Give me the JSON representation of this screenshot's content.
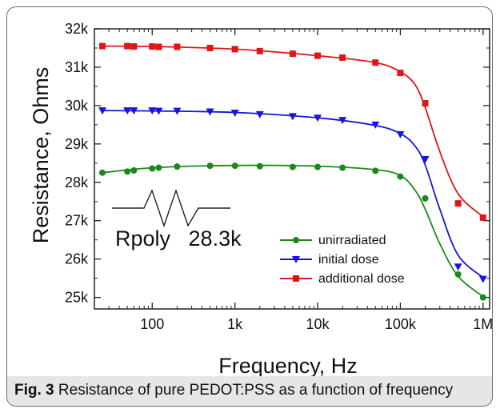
{
  "figure": {
    "caption_label": "Fig. 3",
    "caption_text": "Resistance of pure PEDOT:PSS as a function of frequency"
  },
  "chart_data": {
    "type": "scatter",
    "xlabel": "Frequency, Hz",
    "ylabel": "Resistance, Ohms",
    "xscale": "log",
    "xlim": [
      20,
      1200000
    ],
    "ylim": [
      24700,
      32000
    ],
    "x_ticks": [
      {
        "value": 100,
        "label": "100"
      },
      {
        "value": 1000,
        "label": "1k"
      },
      {
        "value": 10000,
        "label": "10k"
      },
      {
        "value": 100000,
        "label": "100k"
      },
      {
        "value": 1000000,
        "label": "1M"
      }
    ],
    "y_ticks": [
      {
        "value": 25000,
        "label": "25k"
      },
      {
        "value": 26000,
        "label": "26k"
      },
      {
        "value": 27000,
        "label": "27k"
      },
      {
        "value": 28000,
        "label": "28k"
      },
      {
        "value": 29000,
        "label": "29k"
      },
      {
        "value": 30000,
        "label": "30k"
      },
      {
        "value": 31000,
        "label": "31k"
      },
      {
        "value": 32000,
        "label": "32k"
      }
    ],
    "x": [
      25,
      50,
      60,
      100,
      120,
      200,
      500,
      1000,
      2000,
      5000,
      10000,
      20000,
      50000,
      100000,
      200000,
      500000,
      1000000
    ],
    "series": [
      {
        "name": "unirradiated",
        "color": "#1a8a1a",
        "marker": "circle",
        "values": [
          28250,
          28280,
          28310,
          28360,
          28380,
          28410,
          28430,
          28430,
          28420,
          28400,
          28400,
          28380,
          28300,
          28150,
          27580,
          25600,
          25000
        ]
      },
      {
        "name": "initial dose",
        "color": "#1515e0",
        "marker": "triangle-down",
        "values": [
          29870,
          29870,
          29870,
          29870,
          29860,
          29860,
          29840,
          29810,
          29770,
          29720,
          29680,
          29620,
          29500,
          29250,
          28600,
          25800,
          25480
        ]
      },
      {
        "name": "additional dose",
        "color": "#e01515",
        "marker": "square",
        "values": [
          31550,
          31550,
          31540,
          31540,
          31530,
          31530,
          31500,
          31470,
          31420,
          31350,
          31300,
          31250,
          31120,
          30850,
          30060,
          27450,
          27080
        ]
      }
    ],
    "fit_curves": [
      {
        "color": "#1a8a1a",
        "x": [
          25,
          100,
          1000,
          10000,
          50000,
          100000,
          150000,
          200000,
          300000,
          500000,
          1000000
        ],
        "y": [
          28250,
          28380,
          28440,
          28420,
          28330,
          28180,
          27800,
          27300,
          26400,
          25550,
          25020
        ]
      },
      {
        "color": "#1515e0",
        "x": [
          25,
          100,
          1000,
          10000,
          50000,
          100000,
          150000,
          200000,
          300000,
          500000,
          1000000
        ],
        "y": [
          29870,
          29860,
          29820,
          29680,
          29480,
          29270,
          28950,
          28450,
          27300,
          26100,
          25520
        ]
      },
      {
        "color": "#e01515",
        "x": [
          25,
          100,
          1000,
          10000,
          50000,
          100000,
          150000,
          200000,
          300000,
          500000,
          1000000
        ],
        "y": [
          31550,
          31540,
          31470,
          31300,
          31120,
          30880,
          30550,
          29950,
          28800,
          27700,
          27100
        ]
      }
    ],
    "annotation": {
      "text": "Rpoly   28.3k"
    },
    "legend_position": "lower-right"
  }
}
